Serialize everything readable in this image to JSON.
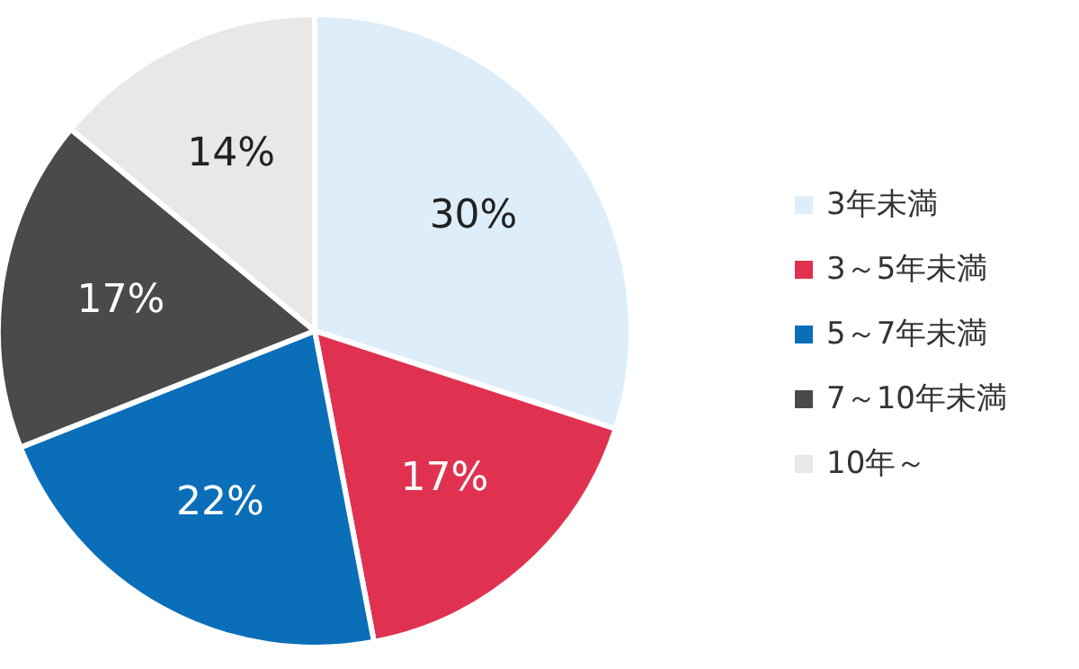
{
  "chart_data": {
    "type": "pie",
    "categories": [
      "3年未満",
      "3～5年未満",
      "5～7年未満",
      "7～10年未満",
      "10年～"
    ],
    "values": [
      30,
      17,
      22,
      17,
      14
    ],
    "value_labels": [
      "30%",
      "17%",
      "22%",
      "17%",
      "14%"
    ],
    "colors": [
      "#ddeefa",
      "#e03250",
      "#0a6eb9",
      "#4a4a4a",
      "#e8e8e8"
    ],
    "legend": "right"
  }
}
